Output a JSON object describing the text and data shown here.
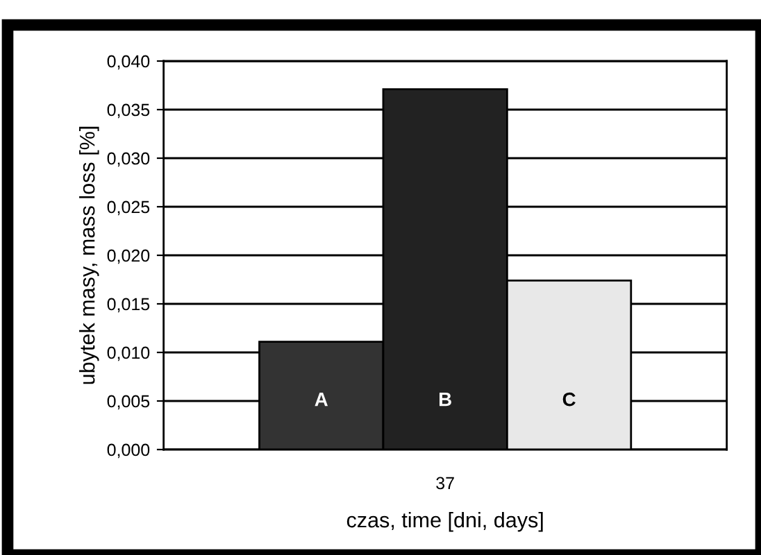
{
  "chart_data": {
    "type": "bar",
    "xlabel": "czas, time [dni, days]",
    "ylabel": "ubytek masy, mass loss [%]",
    "categories": [
      "37"
    ],
    "series": [
      {
        "name": "A",
        "color": "#333333",
        "values": [
          0.0111
        ]
      },
      {
        "name": "B",
        "color": "#222222",
        "values": [
          0.0371
        ]
      },
      {
        "name": "C",
        "color": "#e8e8e8",
        "values": [
          0.0174
        ]
      }
    ],
    "ylim": [
      0,
      0.04
    ],
    "yticks": [
      {
        "value": 0,
        "label": "0,000"
      },
      {
        "value": 0.005,
        "label": "0,005"
      },
      {
        "value": 0.01,
        "label": "0,010"
      },
      {
        "value": 0.015,
        "label": "0,015"
      },
      {
        "value": 0.02,
        "label": "0,020"
      },
      {
        "value": 0.025,
        "label": "0,025"
      },
      {
        "value": 0.03,
        "label": "0,030"
      },
      {
        "value": 0.035,
        "label": "0,035"
      },
      {
        "value": 0.04,
        "label": "0,040"
      }
    ],
    "grid": "y",
    "legend": false
  }
}
